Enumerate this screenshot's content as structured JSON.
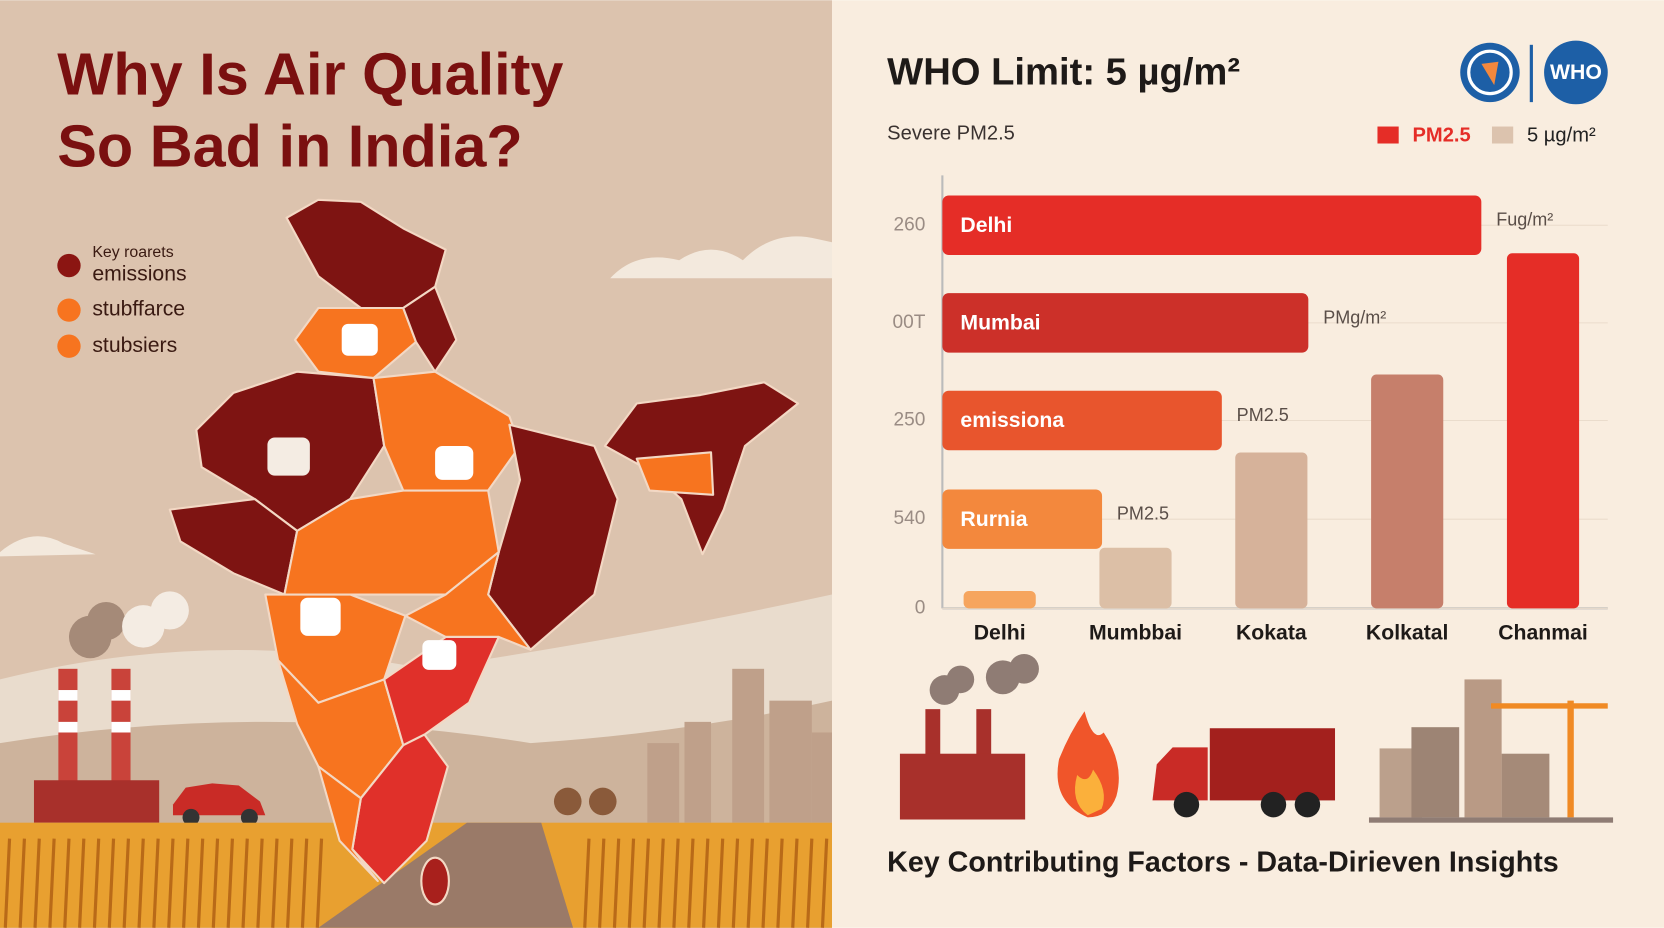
{
  "left": {
    "title_lines": [
      "Why Is Air Quality",
      "So Bad in India?"
    ],
    "legend": [
      {
        "lines": [
          "Key roarets",
          "emissions"
        ],
        "color": "#8b1512"
      },
      {
        "lines": [
          "stubffarce"
        ],
        "color": "#f7741f"
      },
      {
        "lines": [
          "stubsiers"
        ],
        "color": "#f7741f"
      }
    ]
  },
  "right": {
    "header": "WHO Limit: 5 µg/m²",
    "subtitle": "Severe PM2.5",
    "logo_text": "WHO",
    "legend": [
      {
        "name": "PM2.5",
        "color": "#e52d27"
      },
      {
        "name": "5 µg/m²",
        "color": "#dcc3ae"
      }
    ],
    "chart": {
      "y_labels": [
        "260",
        "00T",
        "250",
        "540",
        "0"
      ],
      "bars_horizontal": [
        {
          "label": "Delhi",
          "end_label": "Fug/m²",
          "value": 81,
          "color": "#e52d27"
        },
        {
          "label": "Mumbai",
          "end_label": "PMg/m²",
          "value": 55,
          "color": "#cc3029"
        },
        {
          "label": "emissiona",
          "end_label": "PM2.5",
          "value": 42,
          "color": "#e8552d"
        },
        {
          "label": "Rurnia",
          "end_label": "PM2.5",
          "value": 24,
          "color": "#f3883d"
        }
      ],
      "bars_vertical": [
        {
          "category": "Delhi",
          "value": 4,
          "color": "#f6a55e"
        },
        {
          "category": "Mumbbai",
          "value": 14,
          "color": "#dcbfa6"
        },
        {
          "category": "Kokata",
          "value": 36,
          "color": "#d6b29a"
        },
        {
          "category": "Kolkatal",
          "value": 54,
          "color": "#c67f6b"
        },
        {
          "category": "Chanmai",
          "value": 82,
          "color": "#e52d27"
        }
      ]
    },
    "caption": "Key Contributing Factors - Data-Dirieven Insights"
  }
}
